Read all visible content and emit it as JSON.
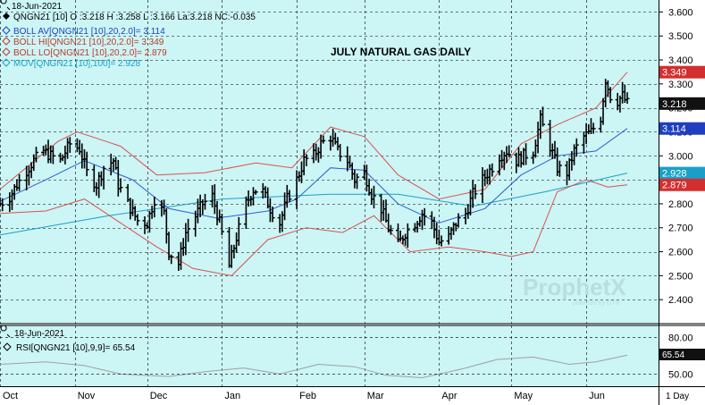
{
  "header": {
    "date": "18-Jun-2021",
    "quote_line": "QNGN21 [10] O :3.218 H :3.258 L :3.166 La:3.218 NC:-0.035",
    "studies": [
      {
        "label": "BOLL AV[QNGN21 [10],20,2.0]= 3.114",
        "color": "#1f3fbf"
      },
      {
        "label": "BOLL HI[QNGN21 [10],20,2.0]= 3.349",
        "color": "#c0392b"
      },
      {
        "label": "BOLL LO[QNGN21 [10],20,2.0]= 2.879",
        "color": "#c0392b"
      },
      {
        "label": "MOV[QNGN21 [10],100]= 2.928",
        "color": "#1aa0c8"
      }
    ]
  },
  "title": "JULY NATURAL GAS DAILY",
  "watermark": {
    "brand": "ProphetX",
    "sub": "powered by DTN"
  },
  "right_tags": [
    {
      "label": "3.349",
      "bg": "#d32f2f",
      "value": 3.349
    },
    {
      "label": "3.218",
      "bg": "#111111",
      "value": 3.218
    },
    {
      "label": "3.114",
      "bg": "#1f3fbf",
      "value": 3.114
    },
    {
      "label": "2.928",
      "bg": "#1aa0c8",
      "value": 2.928
    },
    {
      "label": "2.879",
      "bg": "#d32f2f",
      "value": 2.879
    }
  ],
  "rsi_panel": {
    "date": "18-Jun-2021",
    "label": "RSI[QNGN21 [10],9,9]= 65.54",
    "tag": "65.54",
    "ticks": [
      "80.00",
      "50.00"
    ]
  },
  "footer": {
    "months": [
      "Oct",
      "Nov",
      "Dec",
      "Jan",
      "Feb",
      "Mar",
      "Apr",
      "May",
      "Jun"
    ],
    "interval": "1 Day"
  },
  "colors": {
    "background": "#ccf5f5",
    "grid": "#000000",
    "price_bars": "#000000",
    "boll_band": "#d9534f",
    "boll_avg": "#2f5fd0",
    "moving_avg": "#1aa0c8",
    "rsi_line": "#a0a0a0"
  },
  "chart_data": {
    "type": "ohlc",
    "title": "JULY NATURAL GAS DAILY",
    "y_axis": {
      "ylim": [
        2.3,
        3.65
      ],
      "ticks": [
        "3.600",
        "3.500",
        "3.400",
        "3.300",
        "3.200",
        "3.100",
        "3.000",
        "2.900",
        "2.800",
        "2.700",
        "2.600",
        "2.500",
        "2.400"
      ]
    },
    "x_axis": {
      "months": [
        "Oct",
        "Nov",
        "Dec",
        "Jan",
        "Feb",
        "Mar",
        "Apr",
        "May",
        "Jun"
      ],
      "range": [
        "2020-10-01",
        "2021-06-18"
      ]
    },
    "close_path": [
      [
        "2020-10-01",
        2.8
      ],
      [
        "2020-10-05",
        2.83
      ],
      [
        "2020-10-08",
        2.88
      ],
      [
        "2020-10-12",
        2.94
      ],
      [
        "2020-10-15",
        2.98
      ],
      [
        "2020-10-19",
        3.02
      ],
      [
        "2020-10-22",
        3.0
      ],
      [
        "2020-10-26",
        2.98
      ],
      [
        "2020-10-30",
        3.05
      ],
      [
        "2020-11-03",
        3.03
      ],
      [
        "2020-11-06",
        2.93
      ],
      [
        "2020-11-10",
        2.88
      ],
      [
        "2020-11-13",
        2.95
      ],
      [
        "2020-11-17",
        2.98
      ],
      [
        "2020-11-19",
        2.88
      ],
      [
        "2020-11-23",
        2.8
      ],
      [
        "2020-11-27",
        2.73
      ],
      [
        "2020-12-01",
        2.72
      ],
      [
        "2020-12-04",
        2.82
      ],
      [
        "2020-12-08",
        2.76
      ],
      [
        "2020-12-10",
        2.6
      ],
      [
        "2020-12-14",
        2.55
      ],
      [
        "2020-12-17",
        2.68
      ],
      [
        "2020-12-21",
        2.75
      ],
      [
        "2020-12-24",
        2.8
      ],
      [
        "2020-12-28",
        2.83
      ],
      [
        "2020-12-31",
        2.72
      ],
      [
        "2021-01-04",
        2.54
      ],
      [
        "2021-01-07",
        2.66
      ],
      [
        "2021-01-11",
        2.8
      ],
      [
        "2021-01-14",
        2.86
      ],
      [
        "2021-01-18",
        2.85
      ],
      [
        "2021-01-21",
        2.78
      ],
      [
        "2021-01-25",
        2.72
      ],
      [
        "2021-01-28",
        2.82
      ],
      [
        "2021-02-01",
        2.9
      ],
      [
        "2021-02-04",
        2.98
      ],
      [
        "2021-02-08",
        3.0
      ],
      [
        "2021-02-11",
        3.05
      ],
      [
        "2021-02-15",
        3.08
      ],
      [
        "2021-02-18",
        3.02
      ],
      [
        "2021-02-22",
        2.98
      ],
      [
        "2021-02-25",
        2.9
      ],
      [
        "2021-03-01",
        2.93
      ],
      [
        "2021-03-04",
        2.84
      ],
      [
        "2021-03-08",
        2.78
      ],
      [
        "2021-03-11",
        2.7
      ],
      [
        "2021-03-15",
        2.63
      ],
      [
        "2021-03-18",
        2.68
      ],
      [
        "2021-03-22",
        2.72
      ],
      [
        "2021-03-25",
        2.76
      ],
      [
        "2021-03-29",
        2.72
      ],
      [
        "2021-04-01",
        2.64
      ],
      [
        "2021-04-05",
        2.66
      ],
      [
        "2021-04-08",
        2.72
      ],
      [
        "2021-04-12",
        2.76
      ],
      [
        "2021-04-15",
        2.84
      ],
      [
        "2021-04-19",
        2.9
      ],
      [
        "2021-04-22",
        2.94
      ],
      [
        "2021-04-26",
        3.0
      ],
      [
        "2021-04-29",
        3.02
      ],
      [
        "2021-05-03",
        2.98
      ],
      [
        "2021-05-06",
        3.0
      ],
      [
        "2021-05-10",
        3.02
      ],
      [
        "2021-05-13",
        3.15
      ],
      [
        "2021-05-17",
        3.04
      ],
      [
        "2021-05-20",
        2.95
      ],
      [
        "2021-05-24",
        2.93
      ],
      [
        "2021-05-27",
        3.02
      ],
      [
        "2021-05-31",
        3.08
      ],
      [
        "2021-06-03",
        3.1
      ],
      [
        "2021-06-07",
        3.16
      ],
      [
        "2021-06-09",
        3.32
      ],
      [
        "2021-06-11",
        3.25
      ],
      [
        "2021-06-14",
        3.23
      ],
      [
        "2021-06-16",
        3.25
      ],
      [
        "2021-06-18",
        3.218
      ]
    ],
    "boll_hi": [
      [
        "2020-10-01",
        2.86
      ],
      [
        "2020-10-25",
        3.06
      ],
      [
        "2020-11-02",
        3.1
      ],
      [
        "2020-11-20",
        3.04
      ],
      [
        "2020-12-05",
        2.92
      ],
      [
        "2020-12-25",
        2.93
      ],
      [
        "2021-01-15",
        2.97
      ],
      [
        "2021-01-30",
        2.95
      ],
      [
        "2021-02-15",
        3.12
      ],
      [
        "2021-03-01",
        3.08
      ],
      [
        "2021-03-15",
        2.92
      ],
      [
        "2021-04-01",
        2.82
      ],
      [
        "2021-04-20",
        2.86
      ],
      [
        "2021-05-05",
        3.05
      ],
      [
        "2021-05-20",
        3.13
      ],
      [
        "2021-06-05",
        3.2
      ],
      [
        "2021-06-18",
        3.349
      ]
    ],
    "boll_avg": [
      [
        "2020-10-01",
        2.81
      ],
      [
        "2020-10-20",
        2.9
      ],
      [
        "2020-11-05",
        2.98
      ],
      [
        "2020-11-25",
        2.9
      ],
      [
        "2020-12-10",
        2.78
      ],
      [
        "2020-12-30",
        2.74
      ],
      [
        "2021-01-20",
        2.77
      ],
      [
        "2021-02-01",
        2.82
      ],
      [
        "2021-02-15",
        2.95
      ],
      [
        "2021-03-01",
        2.94
      ],
      [
        "2021-03-15",
        2.8
      ],
      [
        "2021-04-01",
        2.72
      ],
      [
        "2021-04-20",
        2.78
      ],
      [
        "2021-05-05",
        2.92
      ],
      [
        "2021-05-20",
        3.0
      ],
      [
        "2021-06-05",
        3.02
      ],
      [
        "2021-06-18",
        3.114
      ]
    ],
    "boll_lo": [
      [
        "2020-10-01",
        2.76
      ],
      [
        "2020-10-20",
        2.77
      ],
      [
        "2020-11-05",
        2.82
      ],
      [
        "2020-11-20",
        2.72
      ],
      [
        "2020-12-05",
        2.62
      ],
      [
        "2020-12-20",
        2.53
      ],
      [
        "2021-01-05",
        2.5
      ],
      [
        "2021-01-20",
        2.65
      ],
      [
        "2021-02-05",
        2.7
      ],
      [
        "2021-02-20",
        2.68
      ],
      [
        "2021-03-05",
        2.75
      ],
      [
        "2021-03-20",
        2.6
      ],
      [
        "2021-04-05",
        2.62
      ],
      [
        "2021-04-20",
        2.6
      ],
      [
        "2021-05-01",
        2.58
      ],
      [
        "2021-05-10",
        2.6
      ],
      [
        "2021-05-20",
        2.85
      ],
      [
        "2021-06-01",
        2.9
      ],
      [
        "2021-06-10",
        2.87
      ],
      [
        "2021-06-18",
        2.879
      ]
    ],
    "mov_avg_100": [
      [
        "2020-10-01",
        2.67
      ],
      [
        "2020-11-15",
        2.75
      ],
      [
        "2021-01-01",
        2.82
      ],
      [
        "2021-02-15",
        2.84
      ],
      [
        "2021-03-15",
        2.84
      ],
      [
        "2021-04-15",
        2.79
      ],
      [
        "2021-05-15",
        2.85
      ],
      [
        "2021-06-18",
        2.928
      ]
    ],
    "rsi": {
      "ylim": [
        40,
        90
      ],
      "last": 65.54,
      "path": [
        [
          "2020-10-01",
          58
        ],
        [
          "2020-10-20",
          60
        ],
        [
          "2020-11-05",
          57
        ],
        [
          "2020-11-20",
          50
        ],
        [
          "2020-12-10",
          48
        ],
        [
          "2020-12-25",
          52
        ],
        [
          "2021-01-10",
          55
        ],
        [
          "2021-01-25",
          50
        ],
        [
          "2021-02-10",
          58
        ],
        [
          "2021-02-25",
          56
        ],
        [
          "2021-03-10",
          49
        ],
        [
          "2021-03-25",
          47
        ],
        [
          "2021-04-10",
          54
        ],
        [
          "2021-04-25",
          62
        ],
        [
          "2021-05-10",
          64
        ],
        [
          "2021-05-25",
          58
        ],
        [
          "2021-06-05",
          60
        ],
        [
          "2021-06-18",
          65.54
        ]
      ]
    }
  }
}
